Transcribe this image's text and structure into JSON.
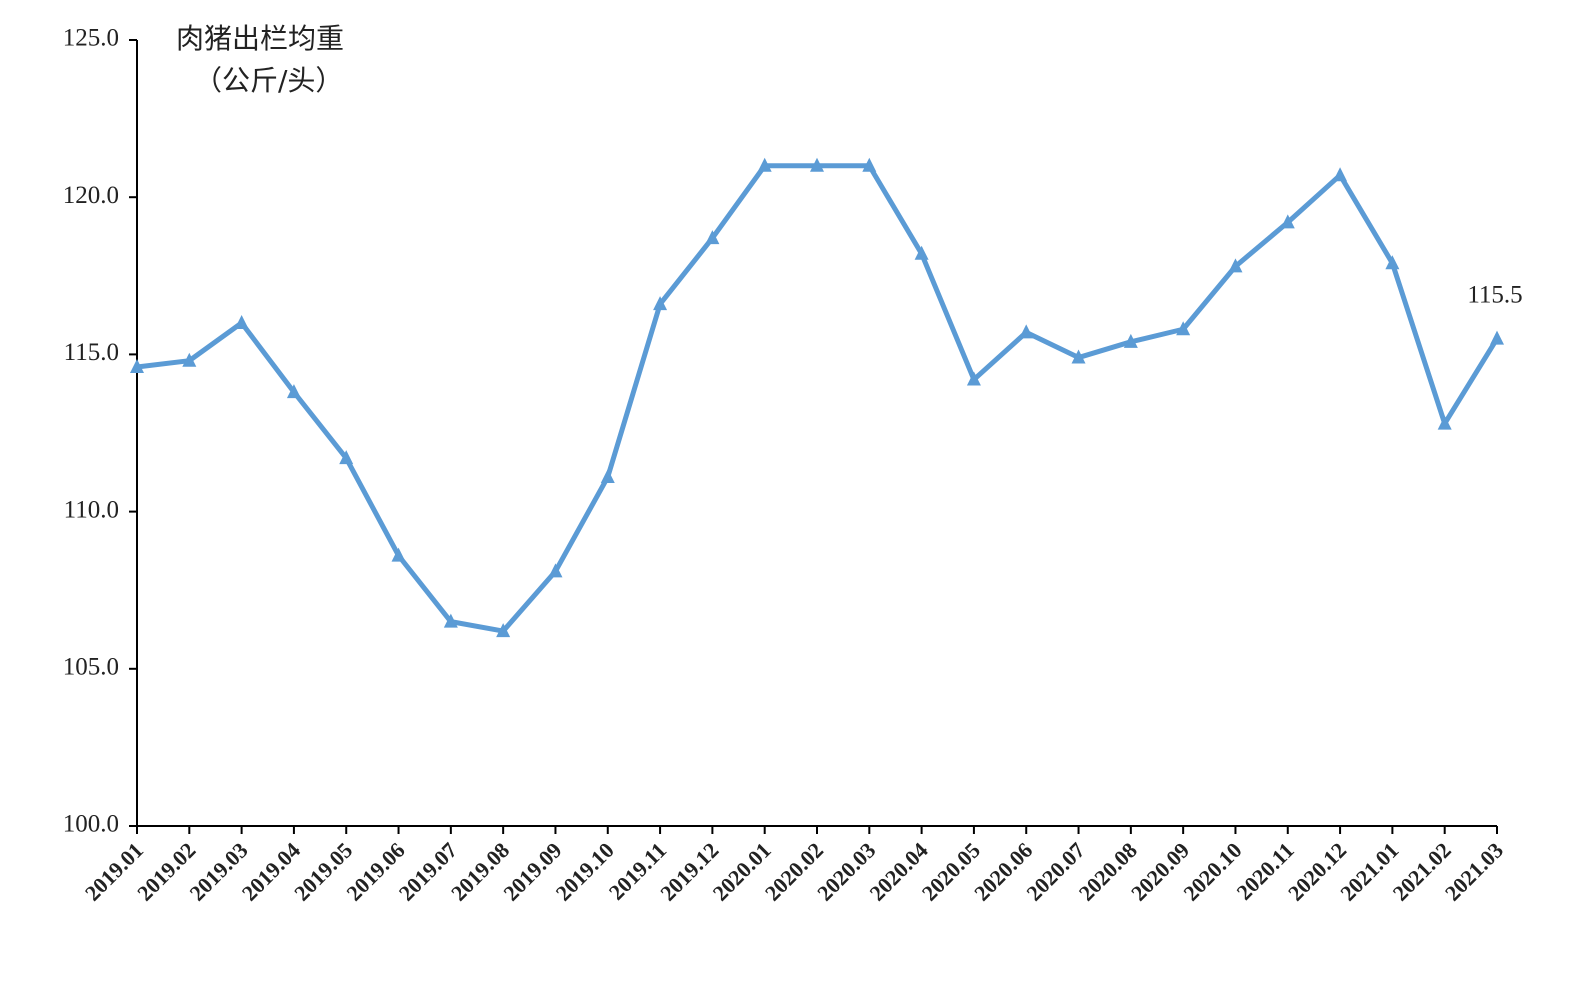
{
  "chart_data": {
    "type": "line",
    "title": "肉猪出栏均重",
    "y_label": "（公斤/头）",
    "categories": [
      "2019.01",
      "2019.02",
      "2019.03",
      "2019.04",
      "2019.05",
      "2019.06",
      "2019.07",
      "2019.08",
      "2019.09",
      "2019.10",
      "2019.11",
      "2019.12",
      "2020.01",
      "2020.02",
      "2020.03",
      "2020.04",
      "2020.05",
      "2020.06",
      "2020.07",
      "2020.08",
      "2020.09",
      "2020.10",
      "2020.11",
      "2020.12",
      "2021.01",
      "2021.02",
      "2021.03"
    ],
    "values": [
      114.6,
      114.8,
      116.0,
      113.8,
      111.7,
      108.6,
      106.5,
      106.2,
      108.1,
      111.1,
      116.6,
      118.7,
      121.0,
      121.0,
      121.0,
      118.2,
      114.2,
      115.7,
      114.9,
      115.4,
      115.8,
      117.8,
      119.2,
      120.7,
      117.9,
      112.8,
      115.5
    ],
    "color": "#5b9bd5",
    "marker": "triangle",
    "label_last": true,
    "ylim": [
      100,
      125
    ],
    "yticks": [
      {
        "value": 100,
        "label": "100.0"
      },
      {
        "value": 105,
        "label": "105.0"
      },
      {
        "value": 110,
        "label": "110.0"
      },
      {
        "value": 115,
        "label": "115.0"
      },
      {
        "value": 120,
        "label": "120.0"
      },
      {
        "value": 125,
        "label": "125.0"
      }
    ],
    "grid": false
  }
}
